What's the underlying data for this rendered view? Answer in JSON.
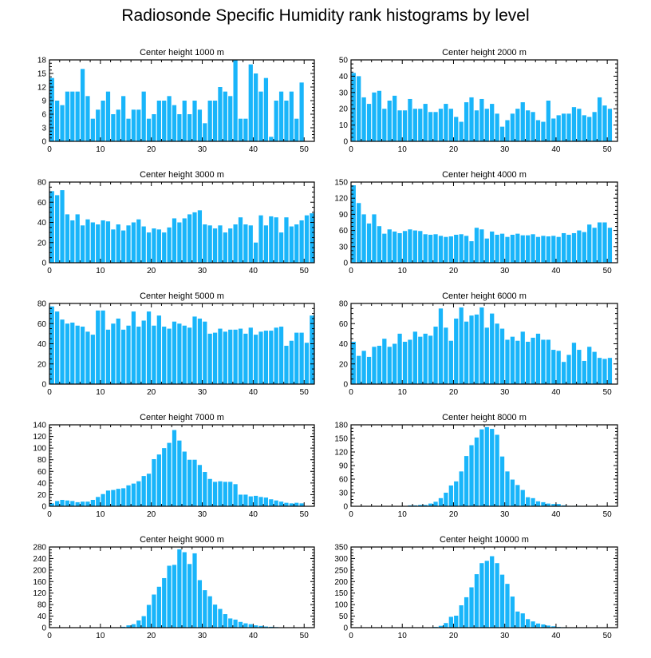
{
  "title": "Radiosonde Specific Humidity rank histograms by level",
  "colors": {
    "bar": "#19B5FA",
    "bar_edge": "#ffffff",
    "axis": "#000000"
  },
  "chart_data": [
    {
      "type": "bar",
      "title": "Center height 1000 m",
      "xlim": [
        0,
        52
      ],
      "ylim": [
        0,
        18
      ],
      "xticks": [
        0,
        10,
        20,
        30,
        40,
        50
      ],
      "yticks": [
        0,
        3,
        6,
        9,
        12,
        15,
        18
      ],
      "values": [
        14,
        9,
        8,
        11,
        11,
        11,
        16,
        10,
        5,
        7,
        9,
        11,
        6,
        7,
        10,
        5,
        7,
        7,
        11,
        5,
        6,
        9,
        9,
        10,
        8,
        6,
        9,
        6,
        9,
        7,
        4,
        9,
        9,
        12,
        11,
        10,
        18,
        5,
        5,
        17,
        15,
        11,
        14,
        1,
        9,
        11,
        9,
        11,
        5,
        13
      ]
    },
    {
      "type": "bar",
      "title": "Center height 2000 m",
      "xlim": [
        0,
        52
      ],
      "ylim": [
        0,
        50
      ],
      "xticks": [
        0,
        10,
        20,
        30,
        40,
        50
      ],
      "yticks": [
        0,
        10,
        20,
        30,
        40,
        50
      ],
      "values": [
        42,
        40,
        27,
        23,
        30,
        31,
        20,
        25,
        28,
        19,
        19,
        26,
        20,
        20,
        23,
        18,
        18,
        20,
        23,
        20,
        15,
        12,
        24,
        27,
        19,
        26,
        20,
        23,
        17,
        9,
        13,
        17,
        20,
        24,
        19,
        18,
        13,
        12,
        25,
        14,
        16,
        17,
        17,
        21,
        20,
        16,
        15,
        18,
        27,
        22,
        20
      ]
    },
    {
      "type": "bar",
      "title": "Center height 3000 m",
      "xlim": [
        0,
        52
      ],
      "ylim": [
        0,
        80
      ],
      "xticks": [
        0,
        10,
        20,
        30,
        40,
        50
      ],
      "yticks": [
        0,
        20,
        40,
        60,
        80
      ],
      "values": [
        71,
        67,
        72,
        48,
        42,
        48,
        37,
        43,
        40,
        38,
        42,
        41,
        33,
        38,
        32,
        37,
        40,
        43,
        36,
        30,
        34,
        33,
        30,
        35,
        44,
        40,
        44,
        48,
        50,
        52,
        38,
        37,
        34,
        37,
        30,
        34,
        38,
        45,
        38,
        37,
        20,
        47,
        37,
        46,
        45,
        30,
        45,
        36,
        38,
        42,
        47,
        49
      ]
    },
    {
      "type": "bar",
      "title": "Center height 4000 m",
      "xlim": [
        0,
        52
      ],
      "ylim": [
        0,
        150
      ],
      "xticks": [
        0,
        10,
        20,
        30,
        40,
        50
      ],
      "yticks": [
        0,
        30,
        60,
        90,
        120,
        150
      ],
      "values": [
        144,
        111,
        90,
        73,
        90,
        68,
        54,
        62,
        58,
        55,
        59,
        62,
        60,
        59,
        53,
        52,
        53,
        50,
        48,
        49,
        52,
        53,
        50,
        40,
        65,
        62,
        45,
        58,
        52,
        54,
        48,
        52,
        54,
        51,
        51,
        53,
        48,
        50,
        49,
        50,
        48,
        55,
        52,
        55,
        60,
        57,
        71,
        65,
        75,
        75,
        65
      ]
    },
    {
      "type": "bar",
      "title": "Center height 5000 m",
      "xlim": [
        0,
        52
      ],
      "ylim": [
        0,
        80
      ],
      "xticks": [
        0,
        10,
        20,
        30,
        40,
        50
      ],
      "yticks": [
        0,
        20,
        40,
        60,
        80
      ],
      "values": [
        77,
        72,
        64,
        60,
        61,
        58,
        57,
        52,
        49,
        73,
        73,
        54,
        60,
        65,
        54,
        58,
        72,
        57,
        63,
        72,
        58,
        68,
        57,
        55,
        62,
        60,
        58,
        56,
        67,
        65,
        62,
        50,
        51,
        55,
        52,
        54,
        54,
        55,
        50,
        56,
        49,
        52,
        53,
        53,
        56,
        57,
        38,
        43,
        51,
        51,
        41,
        68
      ]
    },
    {
      "type": "bar",
      "title": "Center height 6000 m",
      "xlim": [
        0,
        52
      ],
      "ylim": [
        0,
        80
      ],
      "xticks": [
        0,
        10,
        20,
        30,
        40,
        50
      ],
      "yticks": [
        0,
        20,
        40,
        60,
        80
      ],
      "values": [
        42,
        28,
        33,
        27,
        37,
        38,
        45,
        37,
        40,
        50,
        42,
        44,
        52,
        47,
        50,
        48,
        57,
        75,
        56,
        43,
        65,
        76,
        62,
        68,
        69,
        76,
        56,
        70,
        60,
        55,
        44,
        47,
        43,
        52,
        42,
        46,
        50,
        44,
        44,
        34,
        33,
        22,
        29,
        41,
        34,
        23,
        37,
        32,
        26,
        25,
        26
      ]
    },
    {
      "type": "bar",
      "title": "Center height 7000 m",
      "xlim": [
        0,
        52
      ],
      "ylim": [
        0,
        140
      ],
      "xticks": [
        0,
        10,
        20,
        30,
        40,
        50
      ],
      "yticks": [
        0,
        20,
        40,
        60,
        80,
        100,
        120,
        140
      ],
      "values": [
        5,
        9,
        11,
        10,
        9,
        7,
        8,
        8,
        11,
        16,
        21,
        27,
        28,
        30,
        31,
        36,
        39,
        43,
        52,
        56,
        81,
        89,
        100,
        109,
        131,
        113,
        94,
        80,
        80,
        71,
        59,
        47,
        42,
        43,
        42,
        42,
        38,
        20,
        20,
        17,
        18,
        16,
        15,
        12,
        10,
        8,
        6,
        5,
        6,
        5
      ]
    },
    {
      "type": "bar",
      "title": "Center height 8000 m",
      "xlim": [
        0,
        52
      ],
      "ylim": [
        0,
        180
      ],
      "xticks": [
        0,
        10,
        20,
        30,
        40,
        50
      ],
      "yticks": [
        0,
        30,
        60,
        90,
        120,
        150,
        180
      ],
      "values": [
        0,
        0,
        0,
        0,
        0,
        0,
        0,
        0,
        0,
        0,
        0,
        2,
        2,
        3,
        3,
        6,
        10,
        18,
        30,
        46,
        55,
        77,
        111,
        135,
        152,
        170,
        175,
        171,
        158,
        110,
        77,
        59,
        47,
        36,
        20,
        18,
        11,
        9,
        6,
        5,
        5,
        2,
        1,
        1,
        1,
        0,
        0,
        0,
        0,
        0,
        0
      ]
    },
    {
      "type": "bar",
      "title": "Center height 9000 m",
      "xlim": [
        0,
        52
      ],
      "ylim": [
        0,
        280
      ],
      "xticks": [
        0,
        10,
        20,
        30,
        40,
        50
      ],
      "yticks": [
        0,
        40,
        80,
        120,
        160,
        200,
        240,
        280
      ],
      "values": [
        0,
        0,
        0,
        0,
        0,
        0,
        0,
        0,
        0,
        0,
        0,
        0,
        0,
        1,
        3,
        8,
        12,
        25,
        40,
        79,
        115,
        142,
        172,
        215,
        218,
        272,
        262,
        221,
        258,
        165,
        130,
        109,
        80,
        65,
        47,
        32,
        28,
        20,
        15,
        12,
        8,
        6,
        4,
        3,
        2,
        1,
        0,
        0,
        0,
        0
      ]
    },
    {
      "type": "bar",
      "title": "Center height 10000 m",
      "xlim": [
        0,
        52
      ],
      "ylim": [
        0,
        350
      ],
      "xticks": [
        0,
        10,
        20,
        30,
        40,
        50
      ],
      "yticks": [
        0,
        50,
        100,
        150,
        200,
        250,
        300,
        350
      ],
      "values": [
        0,
        0,
        0,
        0,
        0,
        0,
        0,
        0,
        0,
        0,
        0,
        0,
        0,
        0,
        0,
        0,
        3,
        8,
        20,
        47,
        52,
        97,
        132,
        175,
        232,
        280,
        290,
        310,
        280,
        230,
        190,
        135,
        70,
        62,
        37,
        27,
        18,
        14,
        9,
        6,
        3,
        2,
        1,
        0,
        0,
        0,
        0,
        0,
        0,
        0
      ]
    }
  ]
}
